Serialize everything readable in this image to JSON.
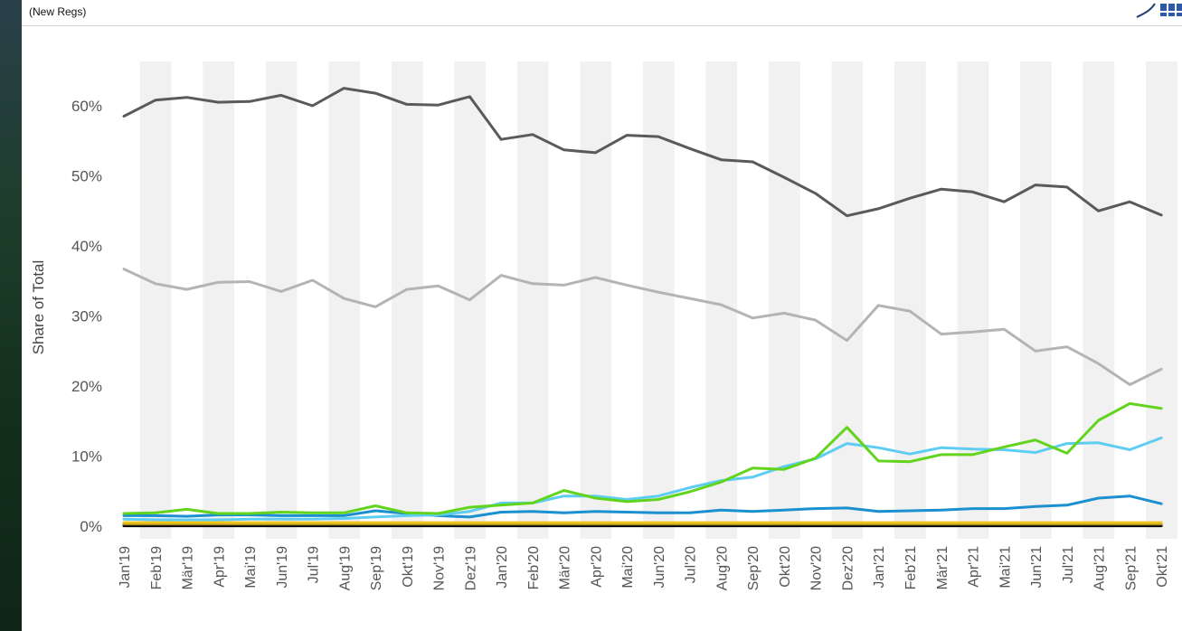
{
  "header": {
    "subtitle": "(New Regs)"
  },
  "chart_data": {
    "type": "line",
    "ylabel": "Share of Total",
    "xlabel": "",
    "ylim": [
      0,
      66
    ],
    "yticks": [
      0,
      10,
      20,
      30,
      40,
      50,
      60
    ],
    "ytick_labels": [
      "0%",
      "10%",
      "20%",
      "30%",
      "40%",
      "50%",
      "60%"
    ],
    "grid": "alternating vertical column bands",
    "categories": [
      "Jan'19",
      "Feb'19",
      "Mär'19",
      "Apr'19",
      "Mai'19",
      "Jun'19",
      "Jul'19",
      "Aug'19",
      "Sep'19",
      "Okt'19",
      "Nov'19",
      "Dez'19",
      "Jan'20",
      "Feb'20",
      "Mär'20",
      "Apr'20",
      "Mai'20",
      "Jun'20",
      "Jul'20",
      "Aug'20",
      "Sep'20",
      "Okt'20",
      "Nov'20",
      "Dez'20",
      "Jan'21",
      "Feb'21",
      "Mär'21",
      "Apr'21",
      "Mai'21",
      "Jun'21",
      "Jul'21",
      "Aug'21",
      "Sep'21",
      "Okt'21"
    ],
    "series": [
      {
        "color": "#5a5a5a",
        "values": [
          58.5,
          60.8,
          61.2,
          60.5,
          60.6,
          61.5,
          60.0,
          62.5,
          61.8,
          60.2,
          60.1,
          61.3,
          55.2,
          55.9,
          53.7,
          53.3,
          55.8,
          55.6,
          53.9,
          52.3,
          52.0,
          49.8,
          47.5,
          44.3,
          45.3,
          46.8,
          48.1,
          47.7,
          46.3,
          48.7,
          48.4,
          45.0,
          46.3,
          44.4
        ]
      },
      {
        "color": "#b4b4b4",
        "values": [
          36.7,
          34.6,
          33.8,
          34.8,
          34.9,
          33.5,
          35.1,
          32.5,
          31.3,
          33.8,
          34.3,
          32.3,
          35.8,
          34.6,
          34.4,
          35.5,
          34.4,
          33.4,
          32.5,
          31.6,
          29.7,
          30.4,
          29.4,
          26.5,
          31.5,
          30.7,
          27.4,
          27.7,
          28.1,
          25.0,
          25.6,
          23.2,
          20.2,
          22.4
        ]
      },
      {
        "color": "#62d41e",
        "values": [
          1.8,
          1.9,
          2.4,
          1.8,
          1.8,
          2.0,
          1.9,
          1.9,
          2.9,
          1.9,
          1.8,
          2.7,
          3.0,
          3.3,
          5.1,
          4.0,
          3.5,
          3.8,
          4.9,
          6.3,
          8.3,
          8.1,
          9.7,
          14.1,
          9.3,
          9.2,
          10.2,
          10.2,
          11.3,
          12.3,
          10.4,
          15.1,
          17.5,
          16.8
        ]
      },
      {
        "color": "#5fcdf2",
        "values": [
          1.0,
          0.9,
          0.9,
          0.9,
          1.0,
          1.0,
          1.0,
          1.1,
          1.3,
          1.5,
          1.6,
          2.1,
          3.3,
          3.3,
          4.3,
          4.3,
          3.8,
          4.3,
          5.5,
          6.5,
          7.0,
          8.5,
          9.6,
          11.8,
          11.2,
          10.3,
          11.2,
          11.0,
          10.9,
          10.5,
          11.8,
          11.9,
          10.9,
          12.6
        ]
      },
      {
        "color": "#1c8fd0",
        "values": [
          1.5,
          1.5,
          1.4,
          1.6,
          1.6,
          1.5,
          1.5,
          1.5,
          2.2,
          1.8,
          1.5,
          1.3,
          2.0,
          2.1,
          1.9,
          2.1,
          2.0,
          1.9,
          1.9,
          2.3,
          2.1,
          2.3,
          2.5,
          2.6,
          2.1,
          2.2,
          2.3,
          2.5,
          2.5,
          2.8,
          3.0,
          4.0,
          4.3,
          3.2
        ]
      },
      {
        "color": "#f2c418",
        "values": [
          0.5,
          0.5,
          0.5,
          0.5,
          0.5,
          0.5,
          0.5,
          0.5,
          0.5,
          0.5,
          0.5,
          0.5,
          0.5,
          0.5,
          0.5,
          0.5,
          0.5,
          0.5,
          0.5,
          0.5,
          0.5,
          0.5,
          0.5,
          0.5,
          0.5,
          0.5,
          0.5,
          0.5,
          0.5,
          0.5,
          0.5,
          0.5,
          0.5,
          0.5
        ]
      },
      {
        "color": "#a08a2a",
        "values": [
          0.3,
          0.3,
          0.3,
          0.3,
          0.3,
          0.3,
          0.3,
          0.3,
          0.3,
          0.3,
          0.3,
          0.3,
          0.3,
          0.3,
          0.3,
          0.3,
          0.3,
          0.3,
          0.3,
          0.3,
          0.3,
          0.3,
          0.3,
          0.3,
          0.3,
          0.3,
          0.3,
          0.3,
          0.3,
          0.3,
          0.3,
          0.3,
          0.3,
          0.3
        ]
      },
      {
        "color": "#000000",
        "values": [
          0.05,
          0.05,
          0.05,
          0.05,
          0.05,
          0.05,
          0.05,
          0.05,
          0.05,
          0.05,
          0.05,
          0.05,
          0.05,
          0.05,
          0.05,
          0.05,
          0.05,
          0.05,
          0.05,
          0.05,
          0.05,
          0.05,
          0.05,
          0.05,
          0.05,
          0.05,
          0.05,
          0.05,
          0.05,
          0.05,
          0.05,
          0.05,
          0.05,
          0.05
        ]
      }
    ]
  }
}
